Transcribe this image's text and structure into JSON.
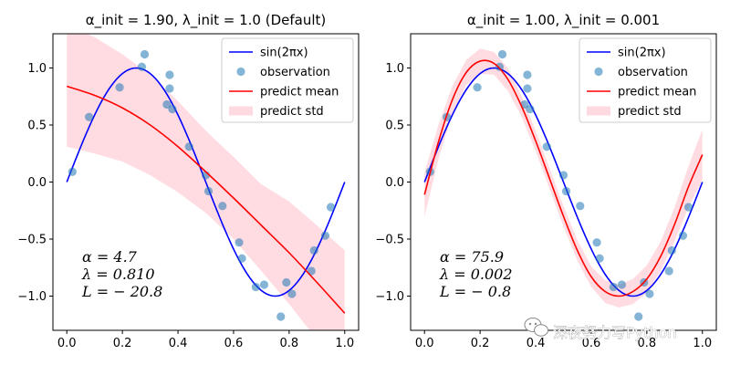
{
  "watermark": {
    "text": "深夜努力写Python",
    "icon": "wechat-icon"
  },
  "colors": {
    "truth": "#0000ff",
    "mean": "#ff0000",
    "std": "#ffc0cb",
    "obs": "#1f77b4"
  },
  "chart_data": [
    {
      "type": "line",
      "title": "α_init = 1.90,  λ_init = 1.0 (Default)",
      "xlim": [
        -0.05,
        1.05
      ],
      "ylim": [
        -1.3,
        1.3
      ],
      "xticks": [
        0.0,
        0.2,
        0.4,
        0.6,
        0.8,
        1.0
      ],
      "xtick_labels": [
        "0.0",
        "0.2",
        "0.4",
        "0.6",
        "0.8",
        "1.0"
      ],
      "yticks": [
        -1.0,
        -0.5,
        0.0,
        0.5,
        1.0
      ],
      "ytick_labels": [
        "−1.0",
        "−0.5",
        "0.0",
        "0.5",
        "1.0"
      ],
      "legend": {
        "position": "upper-right",
        "entries": [
          "sin(2πx)",
          "observation",
          "predict mean",
          "predict std"
        ]
      },
      "annotation": [
        "α = 4.7",
        "λ = 0.810",
        "L = − 20.8"
      ],
      "truth": {
        "name": "sin(2πx)",
        "function": "sin(2*pi*x)"
      },
      "observations": {
        "name": "observation",
        "x": [
          0.02,
          0.08,
          0.19,
          0.27,
          0.28,
          0.36,
          0.37,
          0.37,
          0.38,
          0.44,
          0.5,
          0.51,
          0.56,
          0.62,
          0.63,
          0.68,
          0.71,
          0.77,
          0.79,
          0.81,
          0.88,
          0.89,
          0.93,
          0.95
        ],
        "y": [
          0.09,
          0.57,
          0.83,
          1.01,
          1.12,
          0.68,
          0.94,
          0.82,
          0.64,
          0.31,
          0.06,
          -0.08,
          -0.21,
          -0.53,
          -0.67,
          -0.92,
          -0.9,
          -1.18,
          -0.88,
          -0.98,
          -0.78,
          -0.6,
          -0.47,
          -0.22
        ]
      },
      "mean": {
        "name": "predict mean",
        "x": [
          0.0,
          0.1,
          0.2,
          0.3,
          0.4,
          0.5,
          0.6,
          0.7,
          0.8,
          0.9,
          1.0
        ],
        "y": [
          0.84,
          0.76,
          0.65,
          0.5,
          0.31,
          0.09,
          -0.14,
          -0.38,
          -0.62,
          -0.88,
          -1.15
        ]
      },
      "std": {
        "name": "predict std",
        "x": [
          0.0,
          0.1,
          0.2,
          0.3,
          0.4,
          0.5,
          0.6,
          0.7,
          0.8,
          0.9,
          1.0
        ],
        "lower": [
          0.31,
          0.25,
          0.18,
          0.06,
          -0.09,
          -0.27,
          -0.5,
          -0.78,
          -1.07,
          -1.38,
          -1.7
        ],
        "upper": [
          1.38,
          1.27,
          1.12,
          0.94,
          0.71,
          0.45,
          0.22,
          -0.02,
          -0.17,
          -0.38,
          -0.6
        ]
      }
    },
    {
      "type": "line",
      "title": "α_init = 1.00,  λ_init = 0.001",
      "xlim": [
        -0.05,
        1.05
      ],
      "ylim": [
        -1.3,
        1.3
      ],
      "xticks": [
        0.0,
        0.2,
        0.4,
        0.6,
        0.8,
        1.0
      ],
      "xtick_labels": [
        "0.0",
        "0.2",
        "0.4",
        "0.6",
        "0.8",
        "1.0"
      ],
      "yticks": [
        -1.0,
        -0.5,
        0.0,
        0.5,
        1.0
      ],
      "ytick_labels": [
        "−1.0",
        "−0.5",
        "0.0",
        "0.5",
        "1.0"
      ],
      "legend": {
        "position": "upper-right",
        "entries": [
          "sin(2πx)",
          "observation",
          "predict mean",
          "predict std"
        ]
      },
      "annotation": [
        "α = 75.9",
        "λ = 0.002",
        "L = − 0.8"
      ],
      "truth": {
        "name": "sin(2πx)",
        "function": "sin(2*pi*x)"
      },
      "observations": {
        "name": "observation",
        "x": [
          0.02,
          0.08,
          0.19,
          0.27,
          0.28,
          0.36,
          0.37,
          0.37,
          0.38,
          0.44,
          0.5,
          0.51,
          0.56,
          0.62,
          0.63,
          0.68,
          0.71,
          0.77,
          0.79,
          0.81,
          0.88,
          0.89,
          0.93,
          0.95
        ],
        "y": [
          0.09,
          0.57,
          0.83,
          1.01,
          1.12,
          0.68,
          0.94,
          0.82,
          0.64,
          0.31,
          0.06,
          -0.08,
          -0.21,
          -0.53,
          -0.67,
          -0.92,
          -0.9,
          -1.18,
          -0.88,
          -0.98,
          -0.78,
          -0.6,
          -0.47,
          -0.22
        ]
      },
      "mean": {
        "name": "predict mean",
        "x": [
          0.0,
          0.05,
          0.1,
          0.15,
          0.2,
          0.25,
          0.3,
          0.35,
          0.4,
          0.45,
          0.5,
          0.55,
          0.6,
          0.65,
          0.7,
          0.75,
          0.8,
          0.85,
          0.9,
          0.95,
          1.0
        ],
        "y": [
          -0.11,
          0.35,
          0.72,
          0.96,
          1.06,
          1.04,
          0.9,
          0.66,
          0.36,
          0.03,
          -0.3,
          -0.6,
          -0.83,
          -0.96,
          -1.0,
          -0.96,
          -0.85,
          -0.65,
          -0.37,
          -0.04,
          0.24
        ]
      },
      "std": {
        "name": "predict std",
        "x": [
          0.0,
          0.05,
          0.1,
          0.15,
          0.2,
          0.25,
          0.3,
          0.35,
          0.4,
          0.45,
          0.5,
          0.55,
          0.6,
          0.65,
          0.7,
          0.75,
          0.8,
          0.85,
          0.9,
          0.95,
          1.0
        ],
        "lower": [
          -0.3,
          0.2,
          0.6,
          0.85,
          0.95,
          0.94,
          0.8,
          0.57,
          0.27,
          -0.06,
          -0.39,
          -0.69,
          -0.92,
          -1.06,
          -1.1,
          -1.07,
          -0.97,
          -0.78,
          -0.52,
          -0.22,
          0.02
        ],
        "upper": [
          0.08,
          0.5,
          0.84,
          1.07,
          1.17,
          1.14,
          1.0,
          0.75,
          0.45,
          0.12,
          -0.21,
          -0.51,
          -0.74,
          -0.86,
          -0.9,
          -0.85,
          -0.73,
          -0.52,
          -0.22,
          0.14,
          0.46
        ]
      }
    }
  ]
}
